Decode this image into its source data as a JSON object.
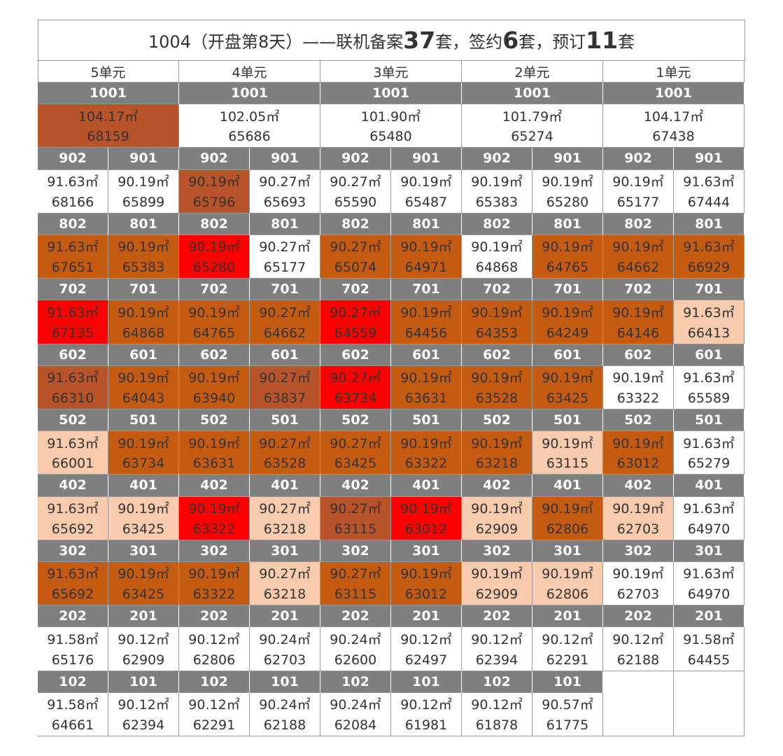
{
  "title": [
    {
      "text": "1004（开盘第8天）——联机备案"
    },
    {
      "text": "37",
      "big": true
    },
    {
      "text": "套，签约"
    },
    {
      "text": "6",
      "big": true
    },
    {
      "text": "套，预订"
    },
    {
      "text": "11",
      "big": true
    },
    {
      "text": "套"
    }
  ],
  "units_header": [
    "5单元",
    "4单元",
    "3单元",
    "2单元",
    "1单元"
  ],
  "floors": [
    {
      "span": 2,
      "units": [
        [
          "1001",
          "104.17㎡",
          "68159",
          "#b9532a"
        ],
        [
          "1001",
          "102.05㎡",
          "65686",
          "#ffffff"
        ],
        [
          "1001",
          "101.90㎡",
          "65480",
          "#ffffff"
        ],
        [
          "1001",
          "101.79㎡",
          "65274",
          "#ffffff"
        ],
        [
          "1001",
          "104.17㎡",
          "67438",
          "#ffffff"
        ]
      ]
    },
    {
      "span": 1,
      "units": [
        [
          "902",
          "91.63㎡",
          "68166",
          "#ffffff"
        ],
        [
          "901",
          "90.19㎡",
          "65899",
          "#ffffff"
        ],
        [
          "902",
          "90.19㎡",
          "65796",
          "#b9532a"
        ],
        [
          "901",
          "90.27㎡",
          "65693",
          "#ffffff"
        ],
        [
          "902",
          "90.27㎡",
          "65590",
          "#ffffff"
        ],
        [
          "901",
          "90.19㎡",
          "65487",
          "#ffffff"
        ],
        [
          "902",
          "90.19㎡",
          "65383",
          "#ffffff"
        ],
        [
          "901",
          "90.19㎡",
          "65280",
          "#ffffff"
        ],
        [
          "902",
          "90.19㎡",
          "65177",
          "#ffffff"
        ],
        [
          "901",
          "91.63㎡",
          "67444",
          "#ffffff"
        ]
      ]
    },
    {
      "span": 1,
      "units": [
        [
          "802",
          "91.63㎡",
          "67651",
          "#c55a11"
        ],
        [
          "801",
          "90.19㎡",
          "65383",
          "#c55a11"
        ],
        [
          "802",
          "90.19㎡",
          "65280",
          "#ff0000"
        ],
        [
          "801",
          "90.27㎡",
          "65177",
          "#ffffff"
        ],
        [
          "802",
          "90.27㎡",
          "65074",
          "#c55a11"
        ],
        [
          "801",
          "90.19㎡",
          "64971",
          "#c55a11"
        ],
        [
          "802",
          "90.19㎡",
          "64868",
          "#ffffff"
        ],
        [
          "801",
          "90.19㎡",
          "64765",
          "#c55a11"
        ],
        [
          "802",
          "90.19㎡",
          "64662",
          "#c55a11"
        ],
        [
          "801",
          "91.63㎡",
          "66929",
          "#c55a11"
        ]
      ]
    },
    {
      "span": 1,
      "units": [
        [
          "702",
          "91.63㎡",
          "67135",
          "#ff0000"
        ],
        [
          "701",
          "90.19㎡",
          "64868",
          "#c55a11"
        ],
        [
          "702",
          "90.19㎡",
          "64765",
          "#c55a11"
        ],
        [
          "701",
          "90.27㎡",
          "64662",
          "#c55a11"
        ],
        [
          "702",
          "90.27㎡",
          "64559",
          "#ff0000"
        ],
        [
          "701",
          "90.19㎡",
          "64456",
          "#c55a11"
        ],
        [
          "702",
          "90.19㎡",
          "64353",
          "#c55a11"
        ],
        [
          "701",
          "90.19㎡",
          "64249",
          "#c55a11"
        ],
        [
          "702",
          "90.19㎡",
          "64146",
          "#c55a11"
        ],
        [
          "701",
          "91.63㎡",
          "66413",
          "#f8cbad"
        ]
      ]
    },
    {
      "span": 1,
      "units": [
        [
          "602",
          "91.63㎡",
          "66310",
          "#b9532a"
        ],
        [
          "601",
          "90.19㎡",
          "64043",
          "#c55a11"
        ],
        [
          "602",
          "90.19㎡",
          "63940",
          "#c55a11"
        ],
        [
          "601",
          "90.27㎡",
          "63837",
          "#b9532a"
        ],
        [
          "602",
          "90.27㎡",
          "63734",
          "#ff0000"
        ],
        [
          "601",
          "90.19㎡",
          "63631",
          "#c55a11"
        ],
        [
          "602",
          "90.19㎡",
          "63528",
          "#c55a11"
        ],
        [
          "601",
          "90.19㎡",
          "63425",
          "#c55a11"
        ],
        [
          "602",
          "90.19㎡",
          "63322",
          "#ffffff"
        ],
        [
          "601",
          "91.63㎡",
          "65589",
          "#ffffff"
        ]
      ]
    },
    {
      "span": 1,
      "units": [
        [
          "502",
          "91.63㎡",
          "66001",
          "#f8cbad"
        ],
        [
          "501",
          "90.19㎡",
          "63734",
          "#c55a11"
        ],
        [
          "502",
          "90.19㎡",
          "63631",
          "#c55a11"
        ],
        [
          "501",
          "90.27㎡",
          "63528",
          "#c55a11"
        ],
        [
          "502",
          "90.27㎡",
          "63425",
          "#c55a11"
        ],
        [
          "501",
          "90.19㎡",
          "63322",
          "#c55a11"
        ],
        [
          "502",
          "90.19㎡",
          "63218",
          "#c55a11"
        ],
        [
          "501",
          "90.19㎡",
          "63115",
          "#f8cbad"
        ],
        [
          "502",
          "90.19㎡",
          "63012",
          "#c55a11"
        ],
        [
          "501",
          "91.63㎡",
          "65279",
          "#ffffff"
        ]
      ]
    },
    {
      "span": 1,
      "units": [
        [
          "402",
          "91.63㎡",
          "65692",
          "#f8cbad"
        ],
        [
          "401",
          "90.19㎡",
          "63425",
          "#f8cbad"
        ],
        [
          "402",
          "90.19㎡",
          "63322",
          "#ff0000"
        ],
        [
          "401",
          "90.27㎡",
          "63218",
          "#f8cbad"
        ],
        [
          "402",
          "90.27㎡",
          "63115",
          "#b9532a"
        ],
        [
          "401",
          "90.19㎡",
          "63012",
          "#ff0000"
        ],
        [
          "402",
          "90.19㎡",
          "62909",
          "#f8cbad"
        ],
        [
          "401",
          "90.19㎡",
          "62806",
          "#c55a11"
        ],
        [
          "402",
          "90.19㎡",
          "62703",
          "#f8cbad"
        ],
        [
          "401",
          "91.63㎡",
          "64970",
          "#ffffff"
        ]
      ]
    },
    {
      "span": 1,
      "units": [
        [
          "302",
          "91.63㎡",
          "65692",
          "#c55a11"
        ],
        [
          "301",
          "90.19㎡",
          "63425",
          "#c55a11"
        ],
        [
          "302",
          "90.19㎡",
          "63322",
          "#c55a11"
        ],
        [
          "301",
          "90.27㎡",
          "63218",
          "#f8cbad"
        ],
        [
          "302",
          "90.27㎡",
          "63115",
          "#c55a11"
        ],
        [
          "301",
          "90.19㎡",
          "63012",
          "#c55a11"
        ],
        [
          "302",
          "90.19㎡",
          "62909",
          "#f8cbad"
        ],
        [
          "301",
          "90.19㎡",
          "62806",
          "#f8cbad"
        ],
        [
          "302",
          "90.19㎡",
          "62703",
          "#ffffff"
        ],
        [
          "301",
          "91.63㎡",
          "64970",
          "#ffffff"
        ]
      ]
    },
    {
      "span": 1,
      "units": [
        [
          "202",
          "91.58㎡",
          "65176",
          "#ffffff"
        ],
        [
          "201",
          "90.12㎡",
          "62909",
          "#ffffff"
        ],
        [
          "202",
          "90.12㎡",
          "62806",
          "#ffffff"
        ],
        [
          "201",
          "90.24㎡",
          "62703",
          "#ffffff"
        ],
        [
          "202",
          "90.24㎡",
          "62600",
          "#ffffff"
        ],
        [
          "201",
          "90.12㎡",
          "62497",
          "#ffffff"
        ],
        [
          "202",
          "90.12㎡",
          "62394",
          "#ffffff"
        ],
        [
          "201",
          "90.12㎡",
          "62291",
          "#ffffff"
        ],
        [
          "202",
          "90.12㎡",
          "62188",
          "#ffffff"
        ],
        [
          "201",
          "91.58㎡",
          "64455",
          "#ffffff"
        ]
      ]
    },
    {
      "span": 1,
      "units": [
        [
          "102",
          "91.58㎡",
          "64661",
          "#ffffff"
        ],
        [
          "101",
          "90.12㎡",
          "62394",
          "#ffffff"
        ],
        [
          "102",
          "90.12㎡",
          "62291",
          "#ffffff"
        ],
        [
          "101",
          "90.24㎡",
          "62188",
          "#ffffff"
        ],
        [
          "102",
          "90.24㎡",
          "62084",
          "#ffffff"
        ],
        [
          "101",
          "90.12㎡",
          "61981",
          "#ffffff"
        ],
        [
          "102",
          "90.12㎡",
          "61878",
          "#ffffff"
        ],
        [
          "101",
          "90.57㎡",
          "61775",
          "#ffffff"
        ]
      ]
    }
  ]
}
